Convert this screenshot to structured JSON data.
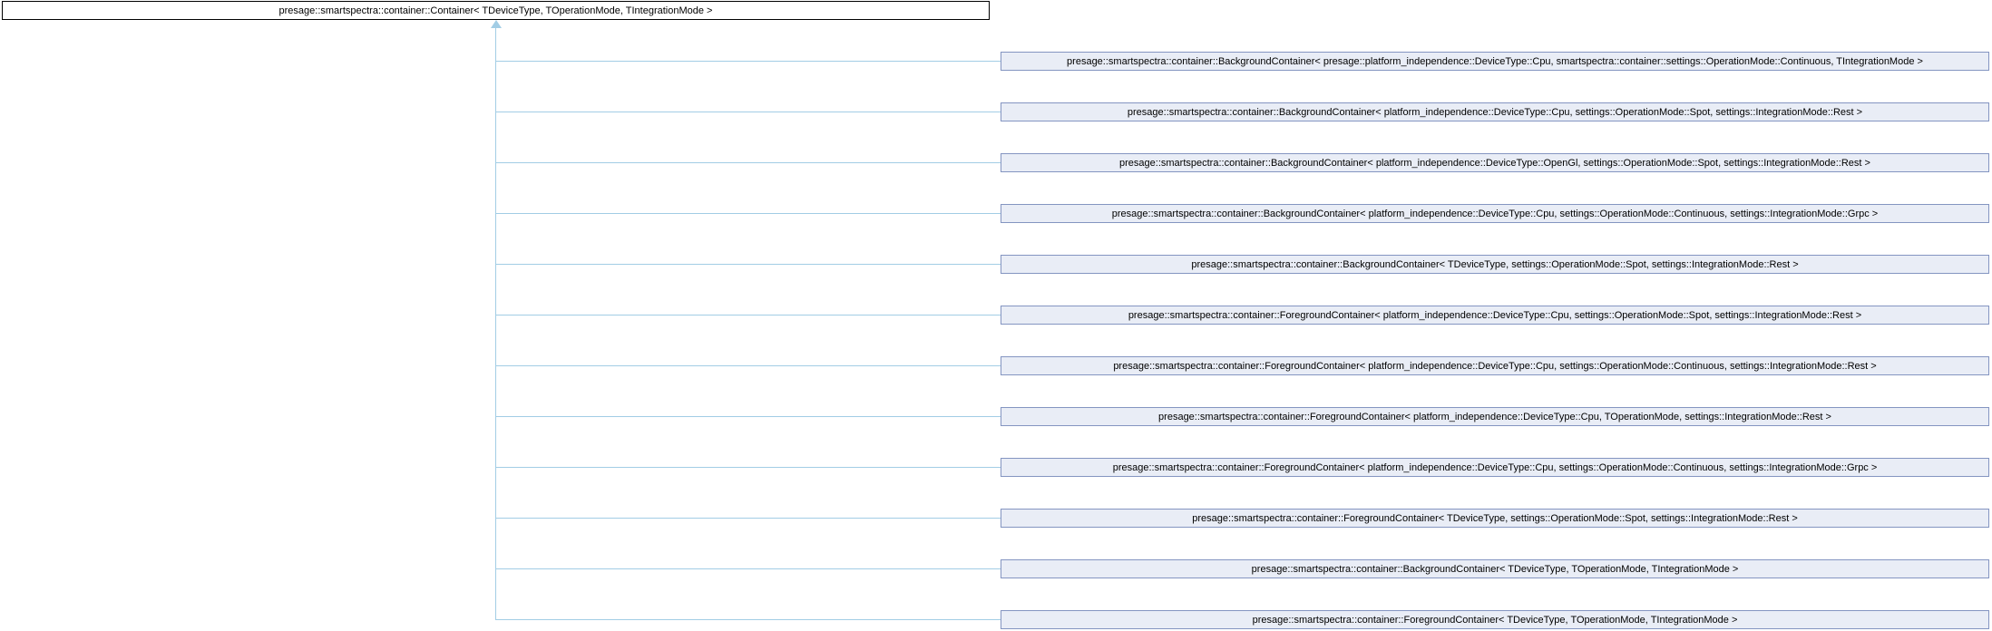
{
  "diagram": {
    "kind": "class-inheritance-graph",
    "base": {
      "label": "presage::smartspectra::container::Container< TDeviceType, TOperationMode, TIntegrationMode >"
    },
    "derived": [
      {
        "label": "presage::smartspectra::container::BackgroundContainer< presage::platform_independence::DeviceType::Cpu, smartspectra::container::settings::OperationMode::Continuous, TIntegrationMode >"
      },
      {
        "label": "presage::smartspectra::container::BackgroundContainer< platform_independence::DeviceType::Cpu, settings::OperationMode::Spot, settings::IntegrationMode::Rest >"
      },
      {
        "label": "presage::smartspectra::container::BackgroundContainer< platform_independence::DeviceType::OpenGl, settings::OperationMode::Spot, settings::IntegrationMode::Rest >"
      },
      {
        "label": "presage::smartspectra::container::BackgroundContainer< platform_independence::DeviceType::Cpu, settings::OperationMode::Continuous, settings::IntegrationMode::Grpc >"
      },
      {
        "label": "presage::smartspectra::container::BackgroundContainer< TDeviceType, settings::OperationMode::Spot, settings::IntegrationMode::Rest >"
      },
      {
        "label": "presage::smartspectra::container::ForegroundContainer< platform_independence::DeviceType::Cpu, settings::OperationMode::Spot, settings::IntegrationMode::Rest >"
      },
      {
        "label": "presage::smartspectra::container::ForegroundContainer< platform_independence::DeviceType::Cpu, settings::OperationMode::Continuous, settings::IntegrationMode::Rest >"
      },
      {
        "label": "presage::smartspectra::container::ForegroundContainer< platform_independence::DeviceType::Cpu, TOperationMode, settings::IntegrationMode::Rest >"
      },
      {
        "label": "presage::smartspectra::container::ForegroundContainer< platform_independence::DeviceType::Cpu, settings::OperationMode::Continuous, settings::IntegrationMode::Grpc >"
      },
      {
        "label": "presage::smartspectra::container::ForegroundContainer< TDeviceType, settings::OperationMode::Spot, settings::IntegrationMode::Rest >"
      },
      {
        "label": "presage::smartspectra::container::BackgroundContainer< TDeviceType, TOperationMode, TIntegrationMode >"
      },
      {
        "label": "presage::smartspectra::container::ForegroundContainer< TDeviceType, TOperationMode, TIntegrationMode >"
      }
    ],
    "colors": {
      "connector": "#a2cde5",
      "derived_fill": "#e9edf6",
      "derived_border": "#8495c1",
      "base_fill": "#ffffff",
      "base_border": "#000000",
      "text": "#000000"
    }
  }
}
